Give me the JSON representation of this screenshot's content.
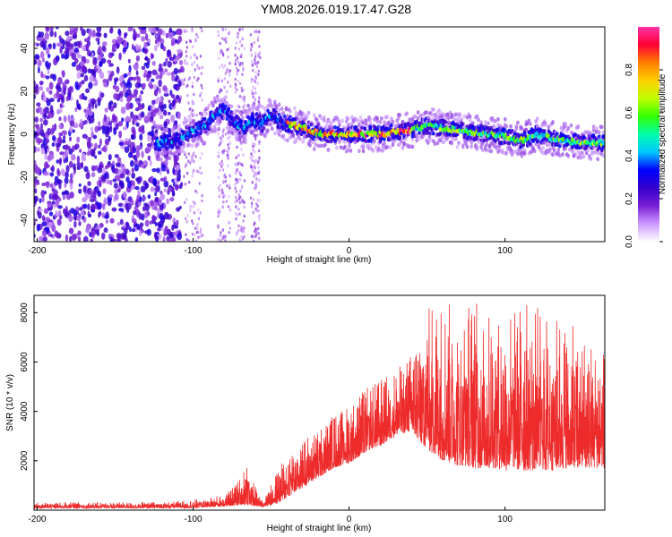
{
  "figure": {
    "title": "YM08.2026.019.17.47.G28"
  },
  "chart_data": [
    {
      "type": "heatmap",
      "name": "spectrogram",
      "xlabel": "Height of straight line (km)",
      "ylabel": "Frequency (Hz)",
      "xlim": [
        -202,
        164
      ],
      "ylim": [
        -50,
        50
      ],
      "xticks": [
        -200,
        -100,
        0,
        100
      ],
      "yticks": [
        -40,
        -20,
        0,
        20,
        40
      ],
      "colorbar": {
        "label": "Normalized spectral amplitude",
        "range": [
          0,
          1
        ],
        "ticks": [
          0.0,
          0.2,
          0.4,
          0.6,
          0.8
        ],
        "colormap": [
          "#ffffff",
          "#cc99ff",
          "#7a1fd6",
          "#3300cc",
          "#0000ff",
          "#00c8ff",
          "#00ffaa",
          "#33ff00",
          "#bfff00",
          "#ffd000",
          "#ff7f00",
          "#ff0033",
          "#ff33aa"
        ]
      },
      "ridge": {
        "description": "dominant frequency versus height",
        "points": [
          [
            -122,
            -4
          ],
          [
            -110,
            -3
          ],
          [
            -100,
            2
          ],
          [
            -92,
            4
          ],
          [
            -86,
            9
          ],
          [
            -80,
            11
          ],
          [
            -74,
            6
          ],
          [
            -68,
            3
          ],
          [
            -62,
            7
          ],
          [
            -56,
            5
          ],
          [
            -50,
            9
          ],
          [
            -46,
            7
          ],
          [
            -40,
            5
          ],
          [
            -34,
            4
          ],
          [
            -28,
            3
          ],
          [
            -22,
            1
          ],
          [
            -15,
            0
          ],
          [
            -8,
            0
          ],
          [
            0,
            0
          ],
          [
            10,
            0
          ],
          [
            20,
            0
          ],
          [
            30,
            1
          ],
          [
            40,
            2
          ],
          [
            50,
            4
          ],
          [
            60,
            3
          ],
          [
            70,
            2
          ],
          [
            80,
            1
          ],
          [
            90,
            0
          ],
          [
            100,
            -1
          ],
          [
            110,
            -3
          ],
          [
            120,
            0
          ],
          [
            130,
            -2
          ],
          [
            140,
            -3
          ],
          [
            150,
            -4
          ],
          [
            164,
            -4
          ]
        ]
      }
    },
    {
      "type": "line",
      "name": "snr",
      "xlabel": "Height of straight line (km)",
      "ylabel": "SNR (10 * v/v)",
      "xlim": [
        -202,
        164
      ],
      "ylim": [
        0,
        8700
      ],
      "xticks": [
        -200,
        -100,
        0,
        100
      ],
      "yticks": [
        2000,
        4000,
        6000,
        8000
      ],
      "color": "#ee2b2b",
      "envelope": {
        "x": [
          -202,
          -180,
          -160,
          -140,
          -120,
          -100,
          -90,
          -80,
          -75,
          -70,
          -66,
          -62,
          -58,
          -55,
          -50,
          -45,
          -40,
          -35,
          -30,
          -25,
          -20,
          -15,
          -10,
          -5,
          0,
          5,
          10,
          15,
          20,
          25,
          30,
          35,
          40,
          45,
          50,
          55,
          60,
          65,
          70,
          75,
          80,
          85,
          90,
          95,
          100,
          110,
          120,
          130,
          140,
          150,
          164
        ],
        "low": [
          80,
          80,
          80,
          80,
          80,
          90,
          120,
          150,
          180,
          200,
          200,
          180,
          150,
          130,
          200,
          300,
          500,
          700,
          900,
          1100,
          1300,
          1500,
          1700,
          1800,
          1900,
          2100,
          2300,
          2500,
          2600,
          2800,
          3000,
          3100,
          3200,
          2800,
          2500,
          2200,
          2000,
          1900,
          1800,
          1800,
          1700,
          1700,
          1700,
          1700,
          1600,
          1600,
          1600,
          1600,
          1700,
          1700,
          1700
        ],
        "high": [
          300,
          320,
          320,
          320,
          330,
          420,
          520,
          650,
          900,
          1300,
          2100,
          1400,
          600,
          500,
          1100,
          1700,
          2300,
          2700,
          2900,
          3100,
          3300,
          3600,
          3900,
          4100,
          4300,
          4600,
          4900,
          5100,
          5300,
          5500,
          5700,
          6000,
          6400,
          7500,
          8200,
          8500,
          8600,
          8400,
          8300,
          8500,
          8600,
          8300,
          8000,
          7900,
          7800,
          8600,
          8300,
          8000,
          7600,
          7200,
          6600
        ]
      }
    }
  ]
}
